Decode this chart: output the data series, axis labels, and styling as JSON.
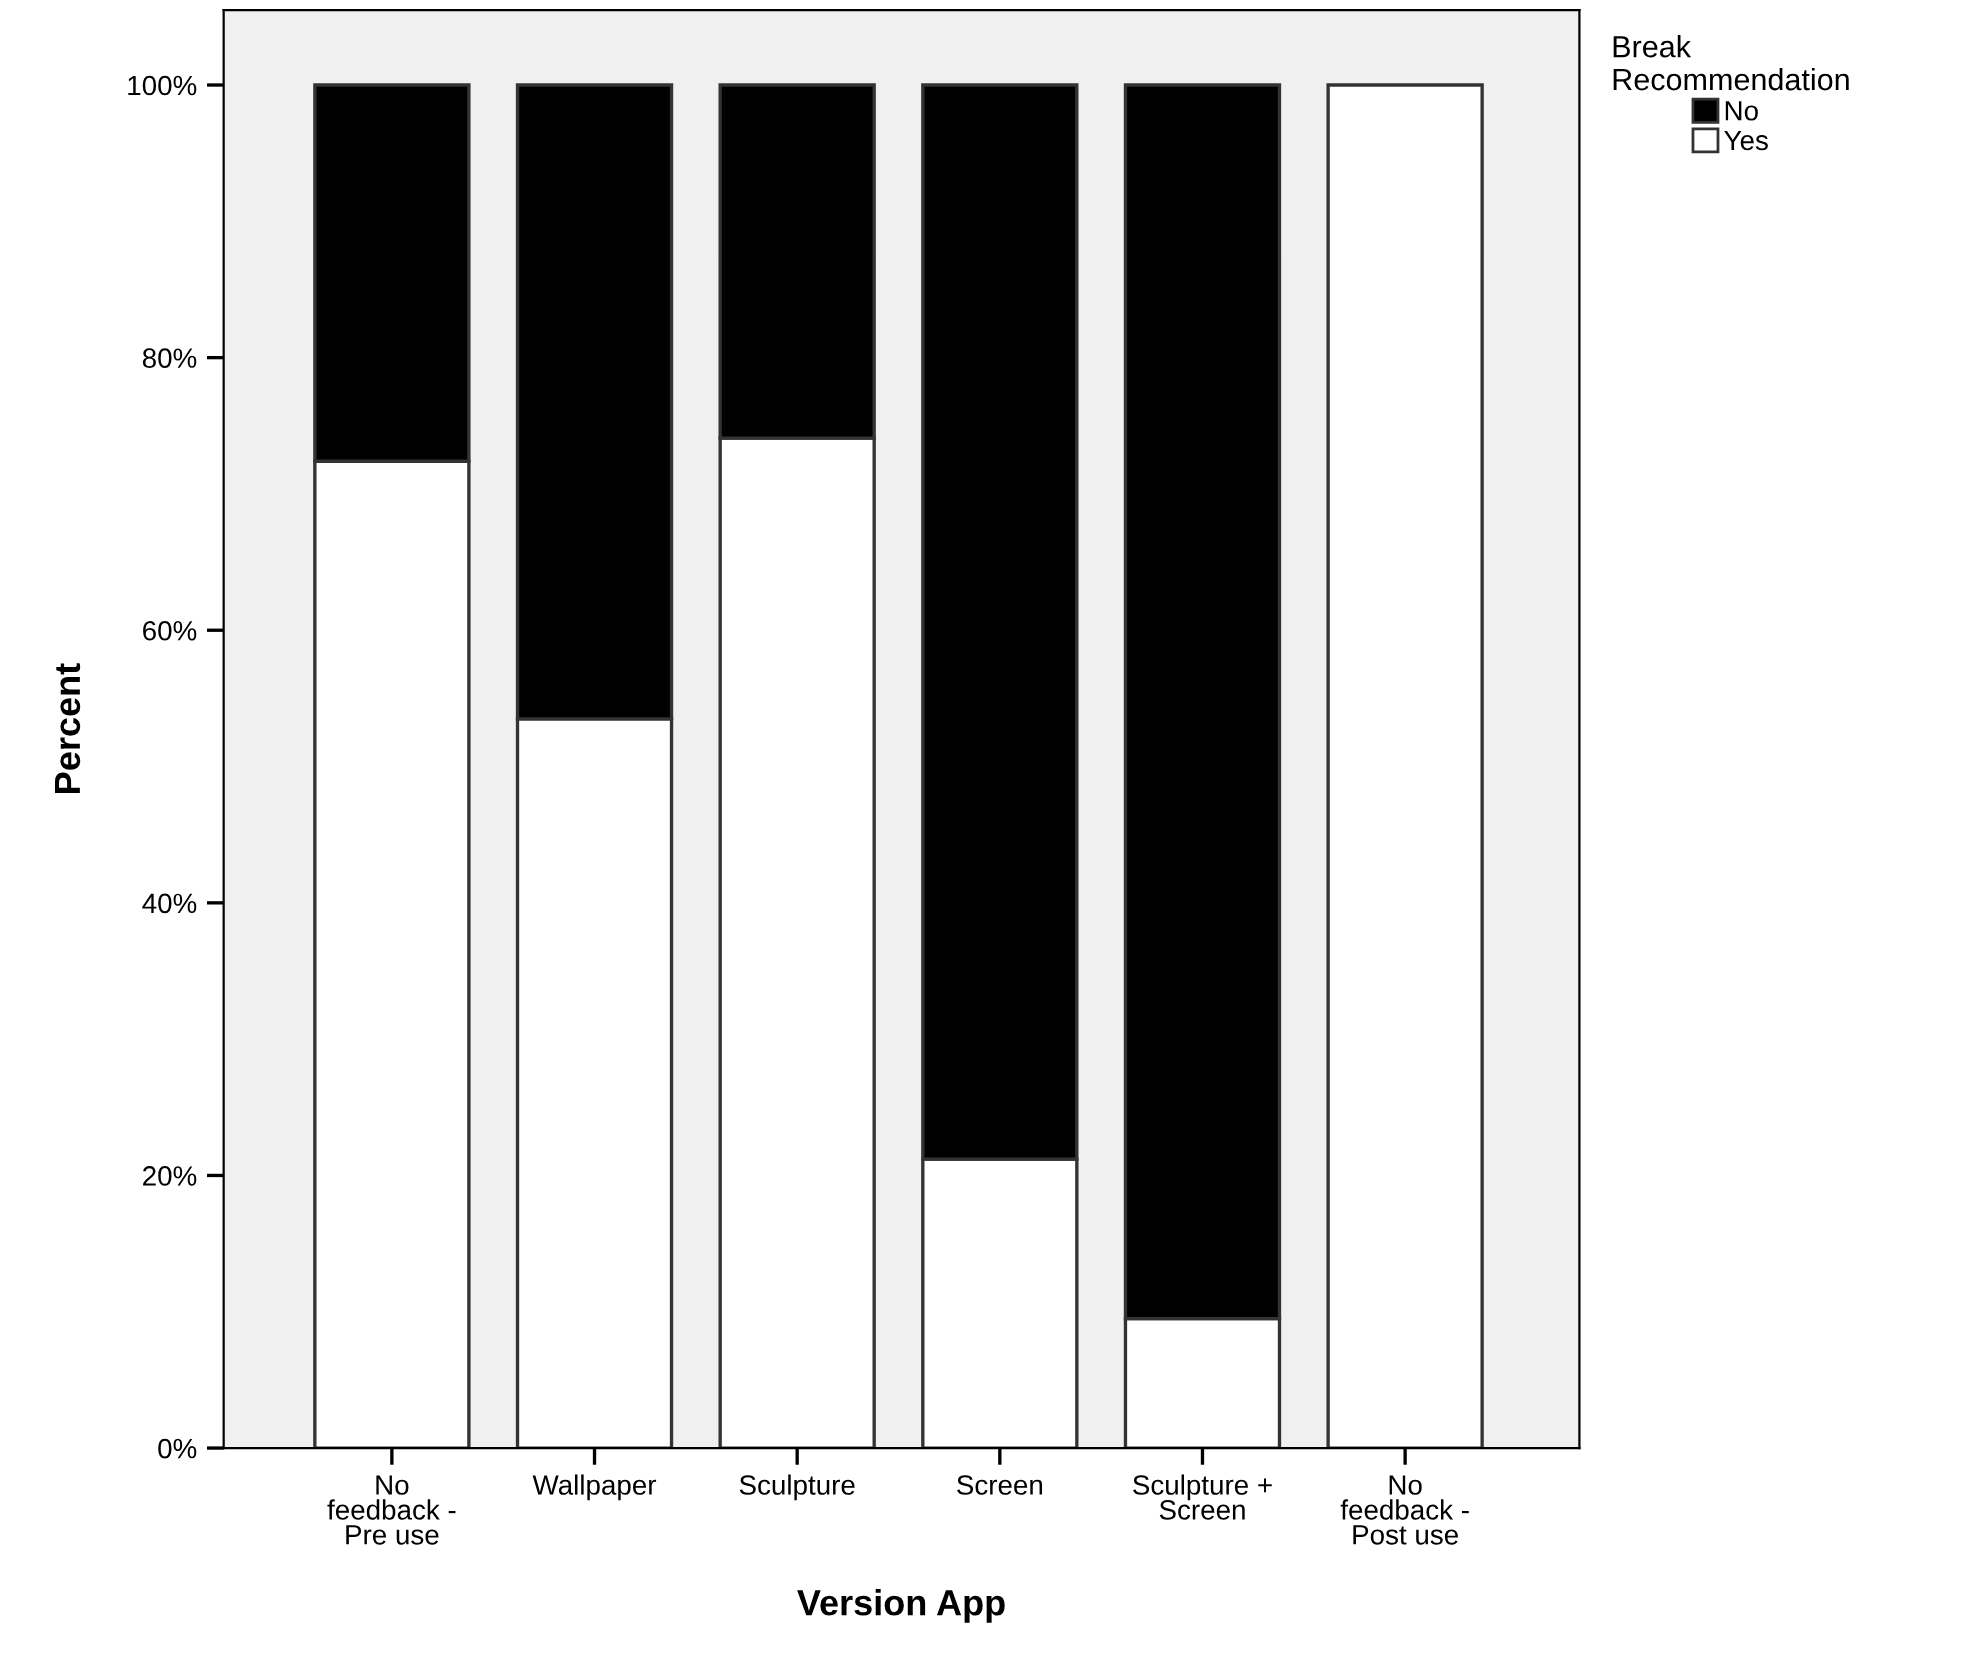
{
  "chart_data": {
    "type": "bar",
    "stacked": true,
    "xlabel": "Version App",
    "ylabel": "Percent",
    "legend_title": "Break\nRecommendation",
    "categories": [
      "No\nfeedback -\nPre use",
      "Wallpaper",
      "Sculpture",
      "Screen",
      "Sculpture +\nScreen",
      "No\nfeedback -\nPost use"
    ],
    "series": [
      {
        "name": "Yes",
        "color": "#ffffff",
        "values": [
          72.4,
          53.5,
          74.1,
          21.2,
          9.5,
          100
        ]
      },
      {
        "name": "No",
        "color": "#000000",
        "values": [
          27.6,
          46.5,
          25.9,
          78.8,
          90.5,
          0
        ]
      }
    ],
    "ylim": [
      0,
      105.5
    ],
    "yticks": [
      {
        "value": 0,
        "label": "0%"
      },
      {
        "value": 20,
        "label": "20%"
      },
      {
        "value": 40,
        "label": "40%"
      },
      {
        "value": 60,
        "label": "60%"
      },
      {
        "value": 80,
        "label": "80%"
      },
      {
        "value": 100,
        "label": "100%"
      }
    ],
    "grid": false,
    "legend": "top right"
  }
}
